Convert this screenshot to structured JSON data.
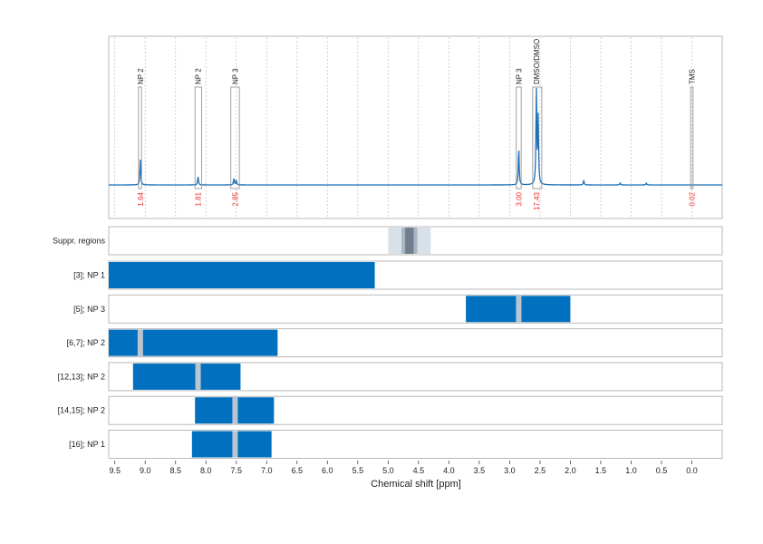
{
  "chart_data": {
    "type": "spectrum",
    "xlabel": "Chemical shift [ppm]",
    "xlim": [
      9.6,
      -0.5
    ],
    "x_ticks": [
      9.5,
      9.0,
      8.5,
      8.0,
      7.5,
      7.0,
      6.5,
      6.0,
      5.5,
      5.0,
      4.5,
      4.0,
      3.5,
      3.0,
      2.5,
      2.0,
      1.5,
      1.0,
      0.5,
      0.0
    ],
    "grid": true,
    "colors": {
      "spectrum": "#1f6fb5",
      "bar": "#0070bf",
      "bar_gap": "#b9c6d2",
      "integral": "#e8312f",
      "suppr_light": "#d9e1e8",
      "suppr_mid": "#a9b6c2",
      "suppr_dark": "#6f7f8d",
      "frame": "#b9b9b9"
    },
    "spectrum": {
      "peaks": [
        {
          "x": 9.08,
          "height": 0.27
        },
        {
          "x": 8.13,
          "height": 0.09
        },
        {
          "x": 7.54,
          "height": 0.07
        },
        {
          "x": 7.5,
          "height": 0.05
        },
        {
          "x": 2.85,
          "height": 0.4
        },
        {
          "x": 2.56,
          "height": 1.0
        },
        {
          "x": 2.53,
          "height": 0.7
        },
        {
          "x": 1.78,
          "height": 0.05
        },
        {
          "x": 1.18,
          "height": 0.02
        },
        {
          "x": 0.75,
          "height": 0.02
        }
      ]
    },
    "peak_annotations": [
      {
        "label": "NP 2",
        "x": 9.08,
        "x_from": 9.11,
        "x_to": 9.06,
        "integral": "1.64"
      },
      {
        "label": "NP 2",
        "x": 8.13,
        "x_from": 8.18,
        "x_to": 8.07,
        "integral": "1.81"
      },
      {
        "label": "NP 3",
        "x": 7.52,
        "x_from": 7.59,
        "x_to": 7.45,
        "integral": "2.85"
      },
      {
        "label": "NP 3",
        "x": 2.85,
        "x_from": 2.89,
        "x_to": 2.81,
        "integral": "3.00"
      },
      {
        "label": "DMSO/DMSO",
        "x": 2.56,
        "x_from": 2.62,
        "x_to": 2.47,
        "integral": "17.43"
      },
      {
        "label": "TMS",
        "x": 0.0,
        "x_from": 0.02,
        "x_to": -0.02,
        "integral": "0.02"
      }
    ],
    "suppression": {
      "label": "Suppr. regions",
      "bands": [
        {
          "from": 5.0,
          "to": 4.3,
          "tone": "light"
        },
        {
          "from": 4.78,
          "to": 4.52,
          "tone": "mid"
        },
        {
          "from": 4.72,
          "to": 4.58,
          "tone": "dark"
        }
      ]
    },
    "rows": [
      {
        "label": "[3]; NP 1",
        "from": 9.6,
        "to": 5.22,
        "gaps": []
      },
      {
        "label": "[5]; NP 3",
        "from": 3.72,
        "to": 2.0,
        "gaps": [
          2.85
        ]
      },
      {
        "label": "[6,7]; NP 2",
        "from": 9.6,
        "to": 6.82,
        "gaps": [
          9.08
        ]
      },
      {
        "label": "[12,13]; NP 2",
        "from": 9.2,
        "to": 7.43,
        "gaps": [
          8.13
        ]
      },
      {
        "label": "[14,15]; NP 2",
        "from": 8.18,
        "to": 6.88,
        "gaps": [
          7.52
        ]
      },
      {
        "label": "[16]; NP 1",
        "from": 8.23,
        "to": 6.92,
        "gaps": [
          7.52
        ]
      }
    ]
  }
}
